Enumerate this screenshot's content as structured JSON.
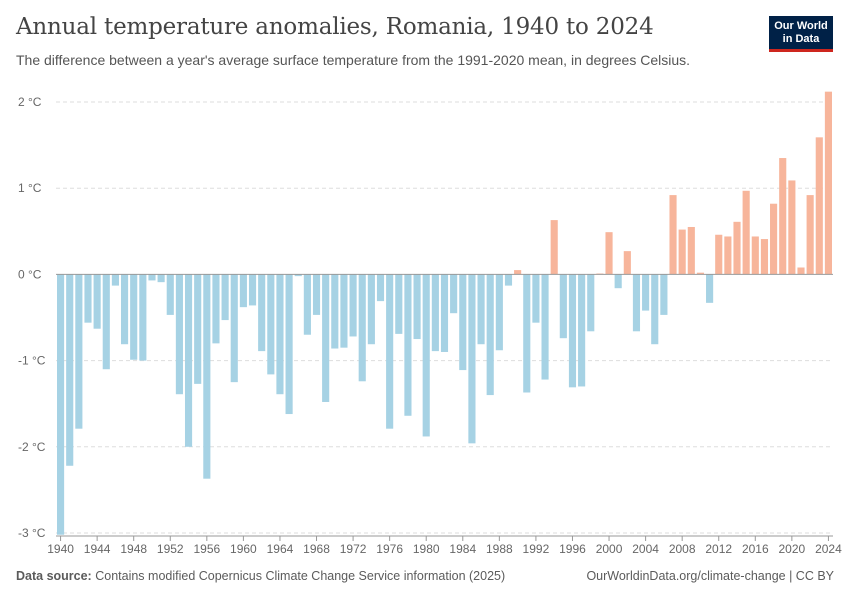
{
  "header": {
    "title": "Annual temperature anomalies, Romania, 1940 to 2024",
    "subtitle": "The difference between a year's average surface temperature from the 1991-2020 mean, in degrees Celsius."
  },
  "logo": {
    "line1": "Our World",
    "line2": "in Data",
    "background": "#002147",
    "accent": "#ce261e"
  },
  "footer": {
    "source_label": "Data source:",
    "source_text": "Contains modified Copernicus Climate Change Service information (2025)",
    "link": "OurWorldinData.org/climate-change | CC BY"
  },
  "chart_data": {
    "type": "bar",
    "unit": "°C",
    "ylim": [
      -3,
      2.1
    ],
    "y_ticks": [
      -3,
      -2,
      -1,
      0,
      1,
      2
    ],
    "y_tick_labels": [
      "-3 °C",
      "-2 °C",
      "-1 °C",
      "0 °C",
      "1 °C",
      "2 °C"
    ],
    "x_tick_labels": [
      "1940",
      "1944",
      "1948",
      "1952",
      "1956",
      "1960",
      "1964",
      "1968",
      "1972",
      "1976",
      "1980",
      "1984",
      "1988",
      "1992",
      "1996",
      "2000",
      "2004",
      "2008",
      "2012",
      "2016",
      "2020",
      "2024"
    ],
    "grid": true,
    "colors": {
      "negative": "#a6d2e4",
      "positive": "#f7b59b"
    },
    "x": [
      1940,
      1941,
      1942,
      1943,
      1944,
      1945,
      1946,
      1947,
      1948,
      1949,
      1950,
      1951,
      1952,
      1953,
      1954,
      1955,
      1956,
      1957,
      1958,
      1959,
      1960,
      1961,
      1962,
      1963,
      1964,
      1965,
      1966,
      1967,
      1968,
      1969,
      1970,
      1971,
      1972,
      1973,
      1974,
      1975,
      1976,
      1977,
      1978,
      1979,
      1980,
      1981,
      1982,
      1983,
      1984,
      1985,
      1986,
      1987,
      1988,
      1989,
      1990,
      1991,
      1992,
      1993,
      1994,
      1995,
      1996,
      1997,
      1998,
      1999,
      2000,
      2001,
      2002,
      2003,
      2004,
      2005,
      2006,
      2007,
      2008,
      2009,
      2010,
      2011,
      2012,
      2013,
      2014,
      2015,
      2016,
      2017,
      2018,
      2019,
      2020,
      2021,
      2022,
      2023,
      2024
    ],
    "values": [
      -3.02,
      -2.22,
      -1.79,
      -0.56,
      -0.63,
      -1.1,
      -0.13,
      -0.81,
      -0.99,
      -1.0,
      -0.07,
      -0.09,
      -0.47,
      -1.39,
      -2.0,
      -1.27,
      -2.37,
      -0.8,
      -0.53,
      -1.25,
      -0.38,
      -0.36,
      -0.89,
      -1.16,
      -1.39,
      -1.62,
      -0.02,
      -0.7,
      -0.47,
      -1.48,
      -0.86,
      -0.85,
      -0.72,
      -1.24,
      -0.81,
      -0.31,
      -1.79,
      -0.69,
      -1.64,
      -0.75,
      -1.88,
      -0.89,
      -0.9,
      -0.45,
      -1.11,
      -1.96,
      -0.81,
      -1.4,
      -0.88,
      -0.13,
      0.05,
      -1.37,
      -0.56,
      -1.22,
      0.63,
      -0.74,
      -1.31,
      -1.3,
      -0.66,
      0.01,
      0.49,
      -0.16,
      0.27,
      -0.66,
      -0.42,
      -0.81,
      -0.47,
      0.92,
      0.52,
      0.55,
      0.02,
      -0.33,
      0.46,
      0.44,
      0.61,
      0.97,
      0.44,
      0.41,
      0.82,
      1.35,
      1.09,
      0.08,
      0.92,
      1.59,
      2.12
    ]
  }
}
